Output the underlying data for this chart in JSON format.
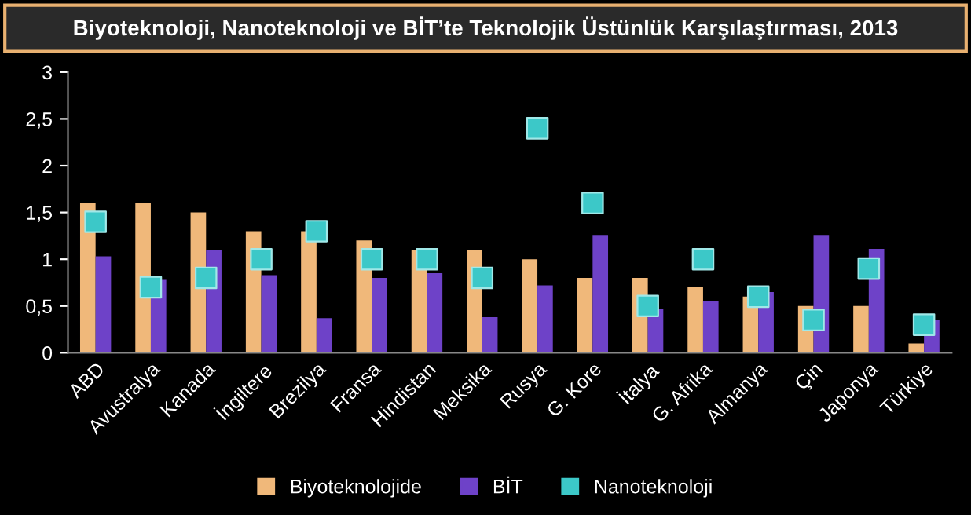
{
  "chart_data": {
    "type": "bar",
    "title": "Biyoteknoloji, Nanoteknoloji ve BİT’te Teknolojik Üstünlük Karşılaştırması, 2013",
    "categories": [
      "ABD",
      "Avustralya",
      "Kanada",
      "İngiltere",
      "Brezilya",
      "Fransa",
      "Hindistan",
      "Meksika",
      "Rusya",
      "G. Kore",
      "İtalya",
      "G. Afrika",
      "Almanya",
      "Çin",
      "Japonya",
      "Türkiye"
    ],
    "series": [
      {
        "name": "Biyoteknolojide",
        "color": "#f0b87a",
        "values": [
          1.6,
          1.6,
          1.5,
          1.3,
          1.3,
          1.2,
          1.1,
          1.1,
          1.0,
          0.8,
          0.8,
          0.7,
          0.6,
          0.5,
          0.5,
          0.1
        ]
      },
      {
        "name": "BİT",
        "color": "#6e42c8",
        "values": [
          1.03,
          0.78,
          1.1,
          0.83,
          0.37,
          0.8,
          0.85,
          0.38,
          0.72,
          1.26,
          0.47,
          0.55,
          0.65,
          1.26,
          1.11,
          0.35
        ]
      },
      {
        "name": "Nanoteknoloji",
        "type": "scatter",
        "marker": "square",
        "color": "#3cc8c8",
        "values": [
          1.4,
          0.7,
          0.8,
          1.0,
          1.3,
          1.0,
          1.0,
          0.8,
          2.4,
          1.6,
          0.5,
          1.0,
          0.6,
          0.35,
          0.9,
          0.3
        ]
      }
    ],
    "ylim": [
      0,
      3
    ],
    "yticks": [
      0,
      {
        "value": 0.5,
        "label": "0,5"
      },
      1,
      {
        "value": 1.5,
        "label": "1,5"
      },
      2,
      {
        "value": 2.5,
        "label": "2,5"
      },
      3
    ],
    "grid": false,
    "legend": "bottom"
  }
}
